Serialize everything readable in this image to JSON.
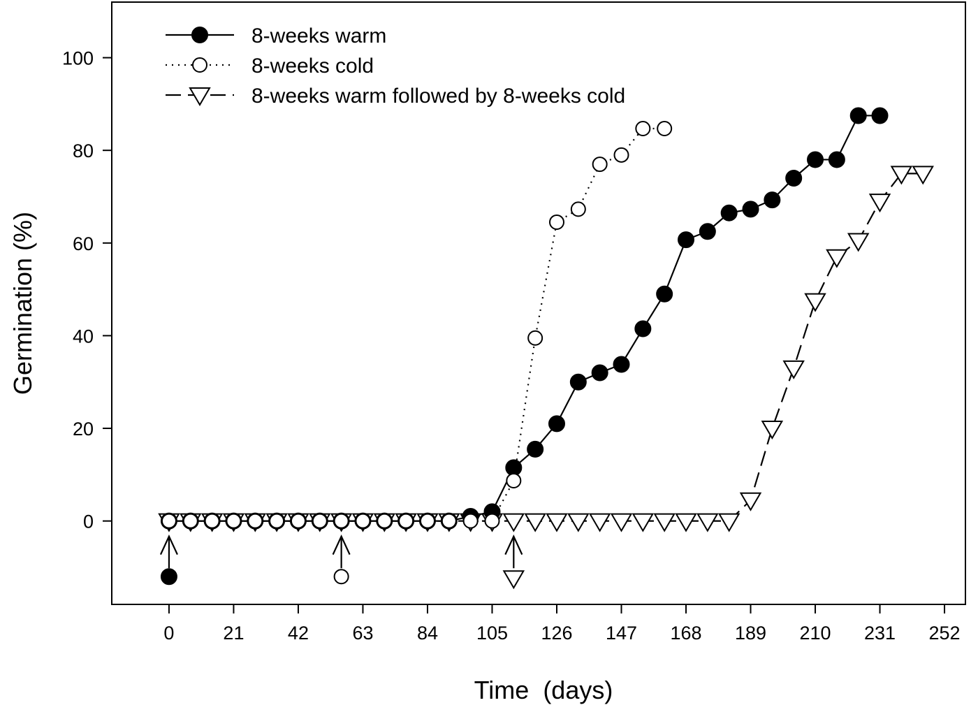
{
  "chart_data": {
    "type": "line",
    "xlabel": "Time  (days)",
    "ylabel": "Germination (%)",
    "xlim": [
      -18.6,
      258.8
    ],
    "ylim": [
      -18,
      112
    ],
    "xticks": [
      0,
      21,
      42,
      63,
      84,
      105,
      126,
      147,
      168,
      189,
      210,
      231,
      252
    ],
    "yticks": [
      0,
      20,
      40,
      60,
      80,
      100
    ],
    "grid": false,
    "legend_position": "top-left",
    "series": [
      {
        "name": "8-weeks warm",
        "marker": "filled-circle",
        "line": "solid",
        "x": [
          0,
          7,
          14,
          21,
          28,
          35,
          42,
          49,
          56,
          63,
          70,
          77,
          84,
          91,
          98,
          105,
          112,
          119,
          126,
          133,
          140,
          147,
          154,
          161,
          168,
          175,
          182,
          189,
          196,
          203,
          210,
          217,
          224,
          231
        ],
        "y": [
          0,
          0,
          0,
          0,
          0,
          0,
          0,
          0,
          0,
          0,
          0,
          0,
          0,
          0,
          1,
          2,
          11.5,
          15.5,
          21,
          30,
          32,
          33.8,
          41.5,
          49,
          60.7,
          62.5,
          66.5,
          67.3,
          69.3,
          74,
          78,
          78,
          87.5,
          87.5
        ]
      },
      {
        "name": "8-weeks cold",
        "marker": "open-circle",
        "line": "dotted",
        "x": [
          0,
          7,
          14,
          21,
          28,
          35,
          42,
          49,
          56,
          63,
          70,
          77,
          84,
          91,
          98,
          105,
          112,
          119,
          126,
          133,
          140,
          147,
          154,
          161
        ],
        "y": [
          0,
          0,
          0,
          0,
          0,
          0,
          0,
          0,
          0,
          0,
          0,
          0,
          0,
          0,
          0,
          0,
          8.7,
          39.5,
          64.5,
          67.3,
          77,
          79,
          84.7,
          84.7
        ]
      },
      {
        "name": "8-weeks warm followed by 8-weeks cold",
        "marker": "open-triangle-down",
        "line": "dashed",
        "x": [
          0,
          7,
          14,
          21,
          28,
          35,
          42,
          49,
          56,
          63,
          70,
          77,
          84,
          91,
          98,
          105,
          112,
          119,
          126,
          133,
          140,
          147,
          154,
          161,
          168,
          175,
          182,
          189,
          196,
          203,
          210,
          217,
          224,
          231,
          238,
          245
        ],
        "y": [
          0,
          0,
          0,
          0,
          0,
          0,
          0,
          0,
          0,
          0,
          0,
          0,
          0,
          0,
          0,
          0,
          0,
          0,
          0,
          0,
          0,
          0,
          0,
          0,
          0,
          0,
          0,
          4.5,
          20,
          33,
          47.5,
          57,
          60.5,
          69,
          75,
          75
        ]
      }
    ],
    "annotations": [
      {
        "x": 0,
        "marker": "filled-circle",
        "type": "arrow-up"
      },
      {
        "x": 56,
        "marker": "open-circle",
        "type": "arrow-up"
      },
      {
        "x": 112,
        "marker": "open-triangle-down",
        "type": "arrow-up"
      }
    ]
  }
}
